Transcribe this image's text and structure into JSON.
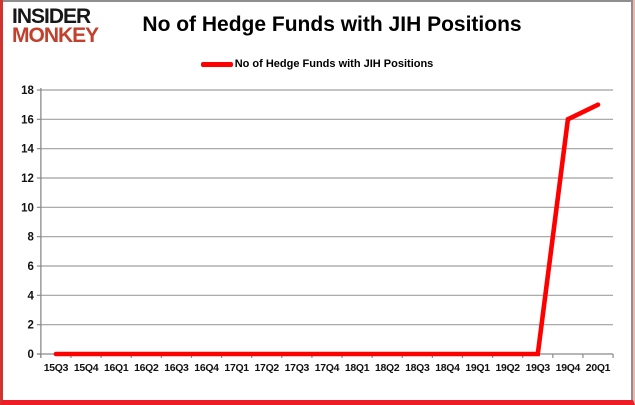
{
  "logo": {
    "line1": "INSIDER",
    "line2": "MONKEY"
  },
  "title": "No of Hedge Funds with JIH Positions",
  "legend": {
    "label": "No of Hedge Funds with JIH Positions"
  },
  "colors": {
    "series": "#fe0000",
    "grid": "#a0a0a0",
    "axis": "#8a8a8a",
    "tick_label": "#111111",
    "logo_black": "#171717",
    "logo_red": "#c2402c",
    "frame_red": "#ee1c25"
  },
  "chart_data": {
    "type": "line",
    "title": "No of Hedge Funds with JIH Positions",
    "categories": [
      "15Q3",
      "15Q4",
      "16Q1",
      "16Q2",
      "16Q3",
      "16Q4",
      "17Q1",
      "17Q2",
      "17Q3",
      "17Q4",
      "18Q1",
      "18Q2",
      "18Q3",
      "18Q4",
      "19Q1",
      "19Q2",
      "19Q3",
      "19Q4",
      "20Q1"
    ],
    "series": [
      {
        "name": "No of Hedge Funds with JIH Positions",
        "values": [
          0,
          0,
          0,
          0,
          0,
          0,
          0,
          0,
          0,
          0,
          0,
          0,
          0,
          0,
          0,
          0,
          0,
          16,
          17
        ]
      }
    ],
    "ylim": [
      0,
      18
    ],
    "yticks": [
      0,
      2,
      4,
      6,
      8,
      10,
      12,
      14,
      16,
      18
    ],
    "grid": true,
    "legend_position": "top"
  }
}
